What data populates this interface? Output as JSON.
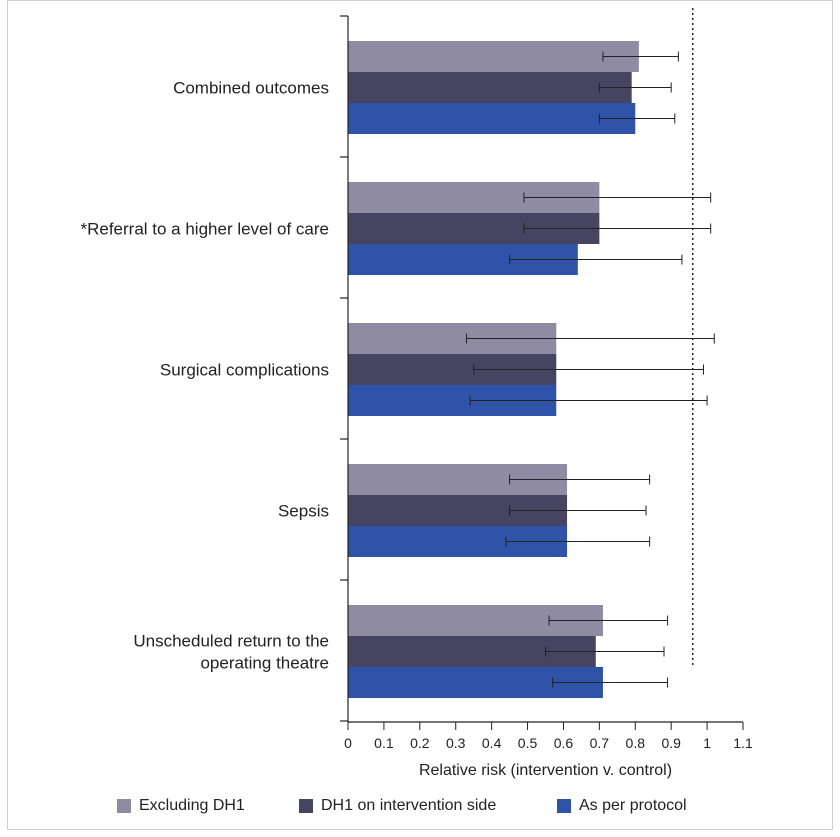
{
  "chart_data": {
    "type": "bar",
    "orientation": "horizontal",
    "xlabel": "Relative risk (intervention v. control)",
    "xlim": [
      0,
      1.1
    ],
    "xticks": [
      0,
      0.1,
      0.2,
      0.3,
      0.4,
      0.5,
      0.6,
      0.7,
      0.8,
      0.9,
      1,
      1.1
    ],
    "reference_line": 0.96,
    "categories": [
      [
        "Combined outcomes"
      ],
      [
        "*Referral to a higher level of care"
      ],
      [
        "Surgical complications"
      ],
      [
        "Sepsis"
      ],
      [
        "Unscheduled return to the",
        "operating theatre"
      ]
    ],
    "series": [
      {
        "name": "Excluding DH1",
        "color": "#8e8ba2",
        "values": [
          0.81,
          0.7,
          0.58,
          0.61,
          0.71
        ],
        "ci_low": [
          0.71,
          0.49,
          0.33,
          0.45,
          0.56
        ],
        "ci_high": [
          0.92,
          1.01,
          1.02,
          0.84,
          0.89
        ]
      },
      {
        "name": "DH1 on intervention side",
        "color": "#454461",
        "values": [
          0.79,
          0.7,
          0.58,
          0.61,
          0.69
        ],
        "ci_low": [
          0.7,
          0.49,
          0.35,
          0.45,
          0.55
        ],
        "ci_high": [
          0.9,
          1.01,
          0.99,
          0.83,
          0.88
        ]
      },
      {
        "name": "As per protocol",
        "color": "#2f53a8",
        "values": [
          0.8,
          0.64,
          0.58,
          0.61,
          0.71
        ],
        "ci_low": [
          0.7,
          0.45,
          0.34,
          0.44,
          0.57
        ],
        "ci_high": [
          0.91,
          0.93,
          1.0,
          0.84,
          0.89
        ]
      }
    ]
  }
}
